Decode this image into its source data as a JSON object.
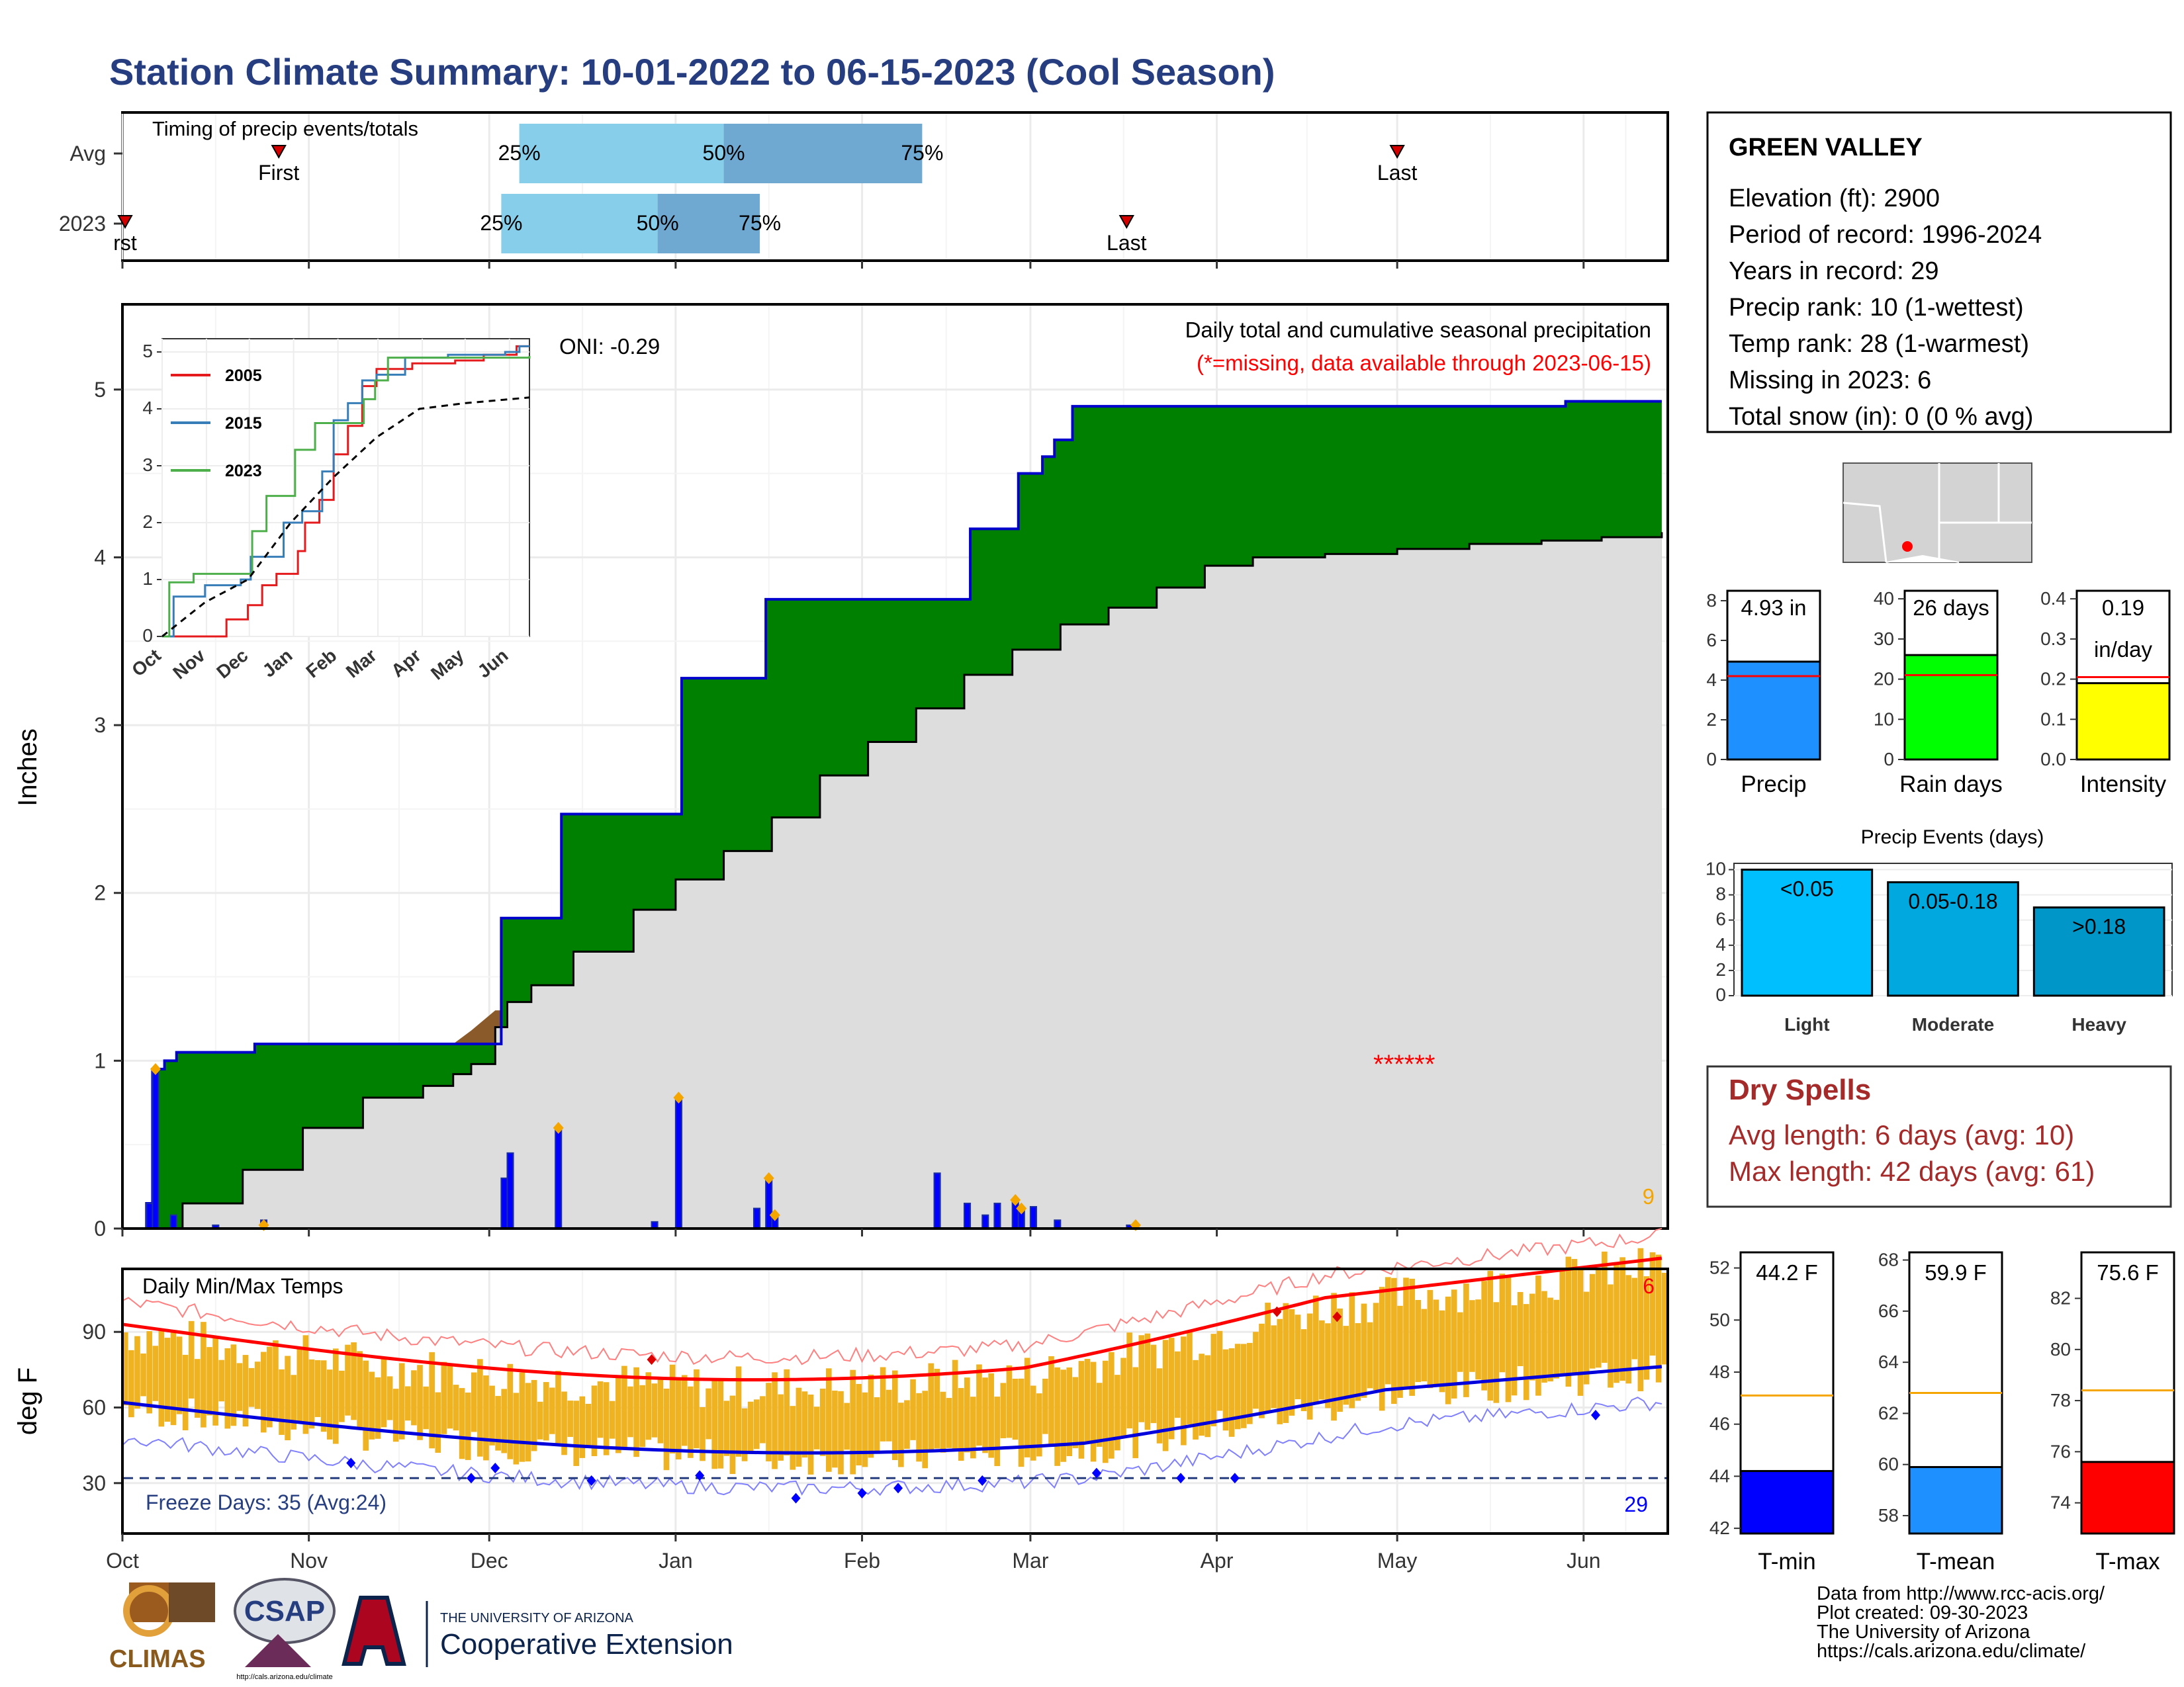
{
  "title": "Station Climate Summary: 10-01-2022 to 06-15-2023 (Cool Season)",
  "colors": {
    "title": "#263e80",
    "cum_green": "#008000",
    "avg_fill": "#dddddd",
    "bar_blue": "#0000ff",
    "bar_outline": "#1b2fa3",
    "orange": "#f5a500",
    "temp_bar": "#efb322",
    "red": "#ff0000",
    "blue": "#0000ff",
    "dry_red": "#a52a2a"
  },
  "months": [
    "Oct",
    "Nov",
    "Dec",
    "Jan",
    "Feb",
    "Mar",
    "Apr",
    "May",
    "Jun"
  ],
  "timing": {
    "label": "Timing of precip events/totals",
    "rows": [
      {
        "name": "Avg",
        "first_label": "First",
        "last_label": "Last",
        "first_doy": 26,
        "last_doy": 212,
        "p25_doy": 66,
        "p50_doy": 100,
        "p75_doy": 133,
        "p25": "25%",
        "p50": "50%",
        "p75": "75%"
      },
      {
        "name": "2023",
        "first_label": "rst",
        "last_label": "Last",
        "first_doy": 0,
        "last_doy": 167,
        "p25_doy": 63,
        "p50_doy": 89,
        "p75_doy": 106,
        "p25": "25%",
        "p50": "50%",
        "p75": "75%"
      }
    ]
  },
  "main": {
    "ylabel": "Inches",
    "subtitle": "Daily total and cumulative seasonal precipitation",
    "note": "(*=missing, data available through 2023-06-15)",
    "oni": "ONI: -0.29",
    "count_label": "9",
    "missing_marks": "******",
    "cum_2023": [
      [
        0,
        0
      ],
      [
        4,
        0.15
      ],
      [
        5,
        0.95
      ],
      [
        7,
        1.0
      ],
      [
        9,
        1.05
      ],
      [
        15,
        1.05
      ],
      [
        22,
        1.1
      ],
      [
        60,
        1.1
      ],
      [
        63,
        1.85
      ],
      [
        72,
        1.85
      ],
      [
        73,
        2.47
      ],
      [
        92,
        2.47
      ],
      [
        93,
        3.28
      ],
      [
        106,
        3.28
      ],
      [
        107,
        3.75
      ],
      [
        140,
        3.75
      ],
      [
        141,
        4.17
      ],
      [
        148,
        4.17
      ],
      [
        149,
        4.5
      ],
      [
        153,
        4.6
      ],
      [
        155,
        4.7
      ],
      [
        158,
        4.9
      ],
      [
        240,
        4.93
      ],
      [
        256,
        4.93
      ]
    ],
    "cum_avg": [
      [
        0,
        0
      ],
      [
        10,
        0.15
      ],
      [
        20,
        0.35
      ],
      [
        30,
        0.6
      ],
      [
        40,
        0.78
      ],
      [
        50,
        0.85
      ],
      [
        55,
        0.92
      ],
      [
        58,
        0.98
      ],
      [
        62,
        1.2
      ],
      [
        64,
        1.35
      ],
      [
        68,
        1.45
      ],
      [
        75,
        1.65
      ],
      [
        85,
        1.9
      ],
      [
        92,
        2.08
      ],
      [
        100,
        2.25
      ],
      [
        108,
        2.45
      ],
      [
        116,
        2.7
      ],
      [
        124,
        2.9
      ],
      [
        132,
        3.1
      ],
      [
        140,
        3.3
      ],
      [
        148,
        3.45
      ],
      [
        156,
        3.6
      ],
      [
        164,
        3.7
      ],
      [
        172,
        3.82
      ],
      [
        180,
        3.95
      ],
      [
        188,
        4.0
      ],
      [
        200,
        4.02
      ],
      [
        212,
        4.05
      ],
      [
        224,
        4.08
      ],
      [
        236,
        4.1
      ],
      [
        246,
        4.12
      ],
      [
        256,
        4.15
      ]
    ],
    "daily_bars": [
      [
        4,
        0.15
      ],
      [
        5,
        0.95
      ],
      [
        8,
        0.08
      ],
      [
        15,
        0.02
      ],
      [
        23,
        0.05
      ],
      [
        63,
        0.3
      ],
      [
        64,
        0.45
      ],
      [
        72,
        0.6
      ],
      [
        88,
        0.04
      ],
      [
        92,
        0.78
      ],
      [
        105,
        0.12
      ],
      [
        107,
        0.3
      ],
      [
        108,
        0.08
      ],
      [
        135,
        0.33
      ],
      [
        140,
        0.15
      ],
      [
        143,
        0.08
      ],
      [
        145,
        0.15
      ],
      [
        148,
        0.17
      ],
      [
        149,
        0.12
      ],
      [
        151,
        0.13
      ],
      [
        155,
        0.05
      ],
      [
        167,
        0.02
      ]
    ],
    "ylim": [
      0,
      5.5
    ],
    "yticks": [
      0,
      1,
      2,
      3,
      4,
      5
    ]
  },
  "inset": {
    "ticks": [
      "0",
      "1",
      "2",
      "3",
      "4",
      "5"
    ],
    "months": [
      "Oct",
      "Nov",
      "Dec",
      "Jan",
      "Feb",
      "Mar",
      "Apr",
      "May",
      "Jun"
    ],
    "series": [
      {
        "name": "2005",
        "color": "#e41a1c"
      },
      {
        "name": "2015",
        "color": "#377eb8"
      },
      {
        "name": "2023",
        "color": "#4daf4a"
      }
    ]
  },
  "temps": {
    "ylabel": "deg F",
    "label": "Daily Min/Max Temps",
    "freeze": "Freeze Days: 35 (Avg:24)",
    "count_hot": "6",
    "count_cold": "29",
    "yticks": [
      "30",
      "60",
      "90"
    ],
    "ylim": [
      10,
      115
    ]
  },
  "station": {
    "name": "GREEN VALLEY",
    "lines": [
      "Elevation (ft): 2900",
      "Period of record: 1996-2024",
      "Years in record: 29",
      "Precip rank: 10 (1-wettest)",
      "Temp rank: 28 (1-warmest)",
      "Missing in 2023: 6",
      "Total snow (in): 0 (0 % avg)"
    ]
  },
  "mini_bars": [
    {
      "label": "Precip",
      "value": 4.93,
      "avg": 4.2,
      "ymax": 8.5,
      "ticks": [
        "0",
        "2",
        "4",
        "6",
        "8"
      ],
      "tick_vals": [
        0,
        2,
        4,
        6,
        8
      ],
      "text1": "4.93 in",
      "text2": "",
      "color": "#1e90ff"
    },
    {
      "label": "Rain days",
      "value": 26,
      "avg": 21,
      "ymax": 42,
      "ticks": [
        "0",
        "10",
        "20",
        "30",
        "40"
      ],
      "tick_vals": [
        0,
        10,
        20,
        30,
        40
      ],
      "text1": "26 days",
      "text2": "",
      "color": "#00ff00"
    },
    {
      "label": "Intensity",
      "value": 0.19,
      "avg": 0.205,
      "ymax": 0.42,
      "ticks": [
        "0.0",
        "0.1",
        "0.2",
        "0.3",
        "0.4"
      ],
      "tick_vals": [
        0,
        0.1,
        0.2,
        0.3,
        0.4
      ],
      "text1": "0.19",
      "text2": "in/day",
      "color": "#ffff00"
    }
  ],
  "events": {
    "title": "Precip Events (days)",
    "ticks": [
      "0",
      "2",
      "4",
      "6",
      "8",
      "10"
    ],
    "bars": [
      {
        "cat": "Light",
        "label": "<0.05",
        "value": 10,
        "color": "#00bfff"
      },
      {
        "cat": "Moderate",
        "label": "0.05-0.18",
        "value": 9,
        "color": "#00a8e0"
      },
      {
        "cat": "Heavy",
        "label": ">0.18",
        "value": 7,
        "color": "#0096c8"
      }
    ]
  },
  "dry": {
    "title": "Dry Spells",
    "line1": "Avg length: 6 days (avg: 10)",
    "line2": "Max length: 42 days (avg: 61)"
  },
  "temp_bars": [
    {
      "label": "T-min",
      "text": "44.2 F",
      "value": 44.2,
      "avg": 47.1,
      "ymin": 41.8,
      "ymax": 52.6,
      "ticks": [
        "42",
        "44",
        "46",
        "48",
        "50",
        "52"
      ],
      "tick_vals": [
        42,
        44,
        46,
        48,
        50,
        52
      ],
      "color": "#0000ff"
    },
    {
      "label": "T-mean",
      "text": "59.9 F",
      "value": 59.9,
      "avg": 62.8,
      "ymin": 57.3,
      "ymax": 68.3,
      "ticks": [
        "58",
        "60",
        "62",
        "64",
        "66",
        "68"
      ],
      "tick_vals": [
        58,
        60,
        62,
        64,
        66,
        68
      ],
      "color": "#1e90ff"
    },
    {
      "label": "T-max",
      "text": "75.6 F",
      "value": 75.6,
      "avg": 78.4,
      "ymin": 72.8,
      "ymax": 83.8,
      "ticks": [
        "74",
        "76",
        "78",
        "80",
        "82"
      ],
      "tick_vals": [
        74,
        76,
        78,
        80,
        82
      ],
      "color": "#ff0000"
    }
  ],
  "footer": {
    "lines": [
      "Data from http://www.rcc-acis.org/",
      "Plot created: 09-30-2023",
      "The University of Arizona",
      "https://cals.arizona.edu/climate/"
    ],
    "logo1": "CLIMAS",
    "logo2": "CSAP",
    "logo2_url": "http://cals.arizona.edu/climate",
    "logo3_small": "THE UNIVERSITY OF ARIZONA",
    "logo3_big": "Cooperative Extension"
  }
}
